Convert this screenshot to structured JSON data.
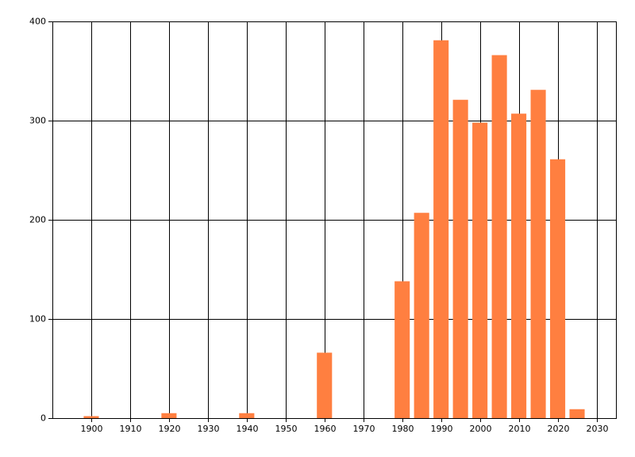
{
  "chart_data": {
    "type": "bar",
    "x": [
      1900,
      1920,
      1940,
      1960,
      1980,
      1985,
      1990,
      1995,
      2000,
      2005,
      2010,
      2015,
      2020,
      2025
    ],
    "values": [
      2,
      5,
      5,
      66,
      138,
      207,
      381,
      321,
      298,
      366,
      307,
      331,
      261,
      9
    ],
    "color": "#ff7f40",
    "xlim": [
      1890,
      2035
    ],
    "xticks": [
      1900,
      1910,
      1920,
      1930,
      1940,
      1950,
      1960,
      1970,
      1980,
      1990,
      2000,
      2010,
      2020,
      2030
    ],
    "ylim": [
      0,
      400
    ],
    "yticks": [
      0,
      100,
      200,
      300,
      400
    ],
    "grid": true
  }
}
